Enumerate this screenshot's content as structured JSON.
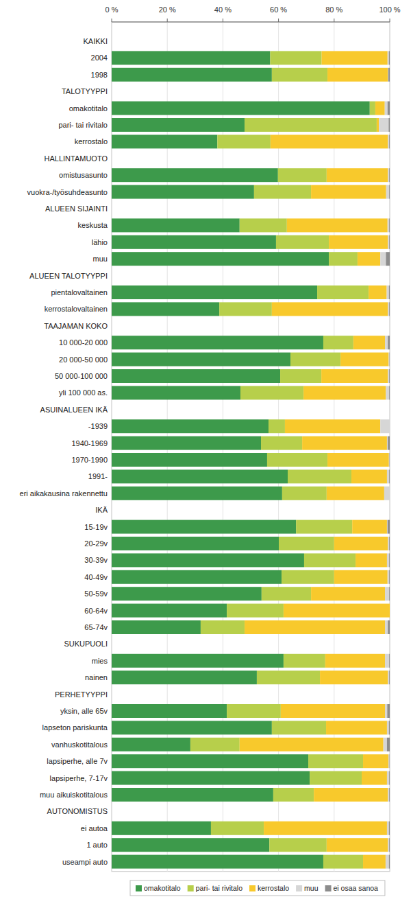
{
  "chart_data": {
    "type": "bar",
    "orientation": "horizontal",
    "stacked": true,
    "grid": true,
    "legend": "bottom",
    "xlim": [
      0,
      100
    ],
    "xticks": [
      {
        "value": 0,
        "label": "0 %"
      },
      {
        "value": 20,
        "label": "20 %"
      },
      {
        "value": 40,
        "label": "40 %"
      },
      {
        "value": 60,
        "label": "60 %"
      },
      {
        "value": 80,
        "label": "80 %"
      },
      {
        "value": 100,
        "label": "100 %"
      }
    ],
    "groups": [
      {
        "label": "KAIKKI",
        "size": 2
      },
      {
        "label": "TALOTYYPPI",
        "size": 3
      },
      {
        "label": "HALLINTAMUOTO",
        "size": 2
      },
      {
        "label": "ALUEEN SIJAINTI",
        "size": 3
      },
      {
        "label": "ALUEEN TALOTYYPPI",
        "size": 2
      },
      {
        "label": "TAAJAMAN KOKO",
        "size": 4
      },
      {
        "label": "ASUINALUEEN IKÄ",
        "size": 5
      },
      {
        "label": "IKÄ",
        "size": 7
      },
      {
        "label": "SUKUPUOLI",
        "size": 2
      },
      {
        "label": "PERHETYYPPI",
        "size": 6
      },
      {
        "label": "AUTONOMISTUS",
        "size": 3
      }
    ],
    "categories": [
      "2004",
      "1998",
      "omakotitalo",
      "pari- tai rivitalo",
      "kerrostalo",
      "omistusasunto",
      "vuokra-/työsuhdeasunto",
      "keskusta",
      "lähio",
      "muu",
      "pientalovaltainen",
      "kerrostalovaltainen",
      "10 000-20 000",
      "20 000-50 000",
      "50 000-100 000",
      "yli 100 000 as.",
      "-1939",
      "1940-1969",
      "1970-1990",
      "1991-",
      "eri aikakausina rakennettu",
      "15-19v",
      "20-29v",
      "30-39v",
      "40-49v",
      "50-59v",
      "60-64v",
      "65-74v",
      "mies",
      "nainen",
      "yksin, alle 65v",
      "lapseton pariskunta",
      "vanhuskotitalous",
      "lapsiperhe, alle 7v",
      "lapsiperhe, 7-17v",
      "muu aikuiskotitalous",
      "ei autoa",
      "1 auto",
      "useampi auto"
    ],
    "series": [
      {
        "name": "omakotitalo",
        "color": "#3d9a4b",
        "values": [
          57.0,
          57.6,
          92.8,
          47.8,
          38.0,
          59.8,
          51.2,
          46.0,
          59.1,
          78.1,
          73.9,
          38.7,
          76.1,
          64.3,
          60.6,
          46.3,
          56.4,
          53.7,
          55.9,
          63.3,
          61.3,
          66.3,
          60.1,
          69.2,
          61.1,
          53.9,
          41.4,
          32.0,
          61.8,
          52.2,
          41.4,
          57.6,
          28.3,
          70.7,
          71.2,
          58.1,
          35.7,
          56.7,
          76.1
        ]
      },
      {
        "name": "pari- tai rivitalo",
        "color": "#b7cf4b",
        "values": [
          18.5,
          20.0,
          2.0,
          47.5,
          19.1,
          17.5,
          20.5,
          17.0,
          19.0,
          10.3,
          18.5,
          18.9,
          10.8,
          18.0,
          14.8,
          22.7,
          5.9,
          14.8,
          21.7,
          22.9,
          16.0,
          20.2,
          19.9,
          18.5,
          18.9,
          17.8,
          20.4,
          15.8,
          15.0,
          22.7,
          19.4,
          19.5,
          17.7,
          19.7,
          18.7,
          14.6,
          19.0,
          20.6,
          14.3
        ]
      },
      {
        "name": "kerrostalo",
        "color": "#f8c92c",
        "values": [
          23.7,
          21.7,
          3.4,
          0.8,
          42.2,
          22.0,
          27.0,
          36.2,
          21.2,
          8.2,
          6.5,
          41.7,
          11.4,
          17.3,
          23.9,
          29.6,
          34.3,
          30.5,
          22.1,
          12.8,
          20.7,
          12.5,
          19.3,
          11.3,
          19.2,
          26.6,
          38.2,
          50.5,
          21.5,
          24.4,
          37.5,
          21.9,
          51.7,
          9.1,
          9.1,
          26.6,
          44.3,
          22.0,
          8.1
        ]
      },
      {
        "name": "muu",
        "color": "#d6d6d6",
        "values": [
          0.5,
          0.2,
          1.0,
          3.5,
          0.5,
          0.5,
          1.1,
          0.6,
          0.5,
          2.0,
          0.8,
          0.5,
          1.0,
          0.3,
          0.5,
          1.2,
          3.4,
          0.3,
          0.2,
          0.8,
          2.0,
          0.2,
          0.5,
          0.8,
          0.6,
          1.5,
          0.0,
          1.0,
          1.5,
          0.5,
          0.8,
          0.7,
          1.3,
          0.4,
          0.8,
          0.5,
          0.7,
          0.5,
          1.2
        ]
      },
      {
        "name": "ei osaa sanoa",
        "color": "#8c8c8c",
        "values": [
          0.3,
          0.5,
          0.8,
          0.4,
          0.2,
          0.2,
          0.2,
          0.2,
          0.2,
          1.4,
          0.3,
          0.2,
          0.7,
          0.1,
          0.2,
          0.2,
          0.0,
          0.7,
          0.1,
          0.2,
          0.0,
          0.8,
          0.2,
          0.2,
          0.2,
          0.2,
          0.0,
          0.7,
          0.2,
          0.2,
          0.9,
          0.3,
          1.0,
          0.1,
          0.2,
          0.2,
          0.3,
          0.2,
          0.3
        ]
      }
    ]
  }
}
